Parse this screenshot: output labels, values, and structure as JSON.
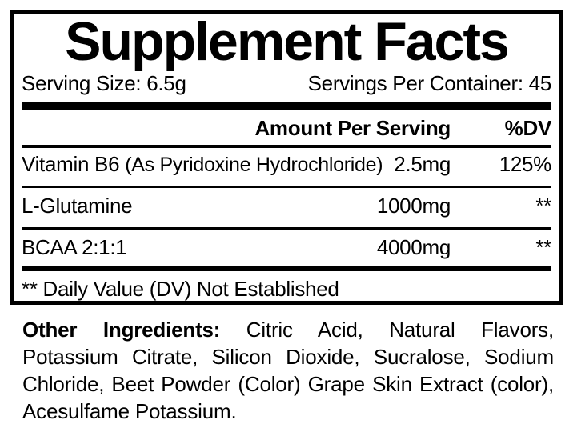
{
  "colors": {
    "ink": "#000000",
    "background": "#ffffff"
  },
  "panel": {
    "title": "Supplement Facts",
    "serving_size": "Serving Size: 6.5g",
    "servings_per_container": "Servings Per Container: 45",
    "columns": {
      "amount_header": "Amount Per Serving",
      "dv_header": "%DV"
    },
    "rows": [
      {
        "name": "Vitamin B6",
        "note": "(As Pyridoxine Hydrochloride)",
        "amount": "2.5mg",
        "dv": "125%"
      },
      {
        "name": "L-Glutamine",
        "note": "",
        "amount": "1000mg",
        "dv": "**"
      },
      {
        "name": "BCAA 2:1:1",
        "note": "",
        "amount": "4000mg",
        "dv": "**"
      }
    ],
    "footnote": "** Daily Value (DV) Not Established"
  },
  "other_ingredients": {
    "label": "Other Ingredients:",
    "line1_rest": "Citric Acid, Natural Flavors,",
    "line2": "Potassium Citrate, Silicon Dioxide, Sucralose, Sodium",
    "line3": "Chloride, Beet Powder (Color) Grape Skin Extract (color),",
    "line4": "Acesulfame Potassium.",
    "full_text": "Other Ingredients: Citric Acid, Natural Flavors, Potassium Citrate, Silicon Dioxide, Sucralose, Sodium Chloride, Beet Powder (Color) Grape Skin Extract (color), Acesulfame Potassium."
  }
}
